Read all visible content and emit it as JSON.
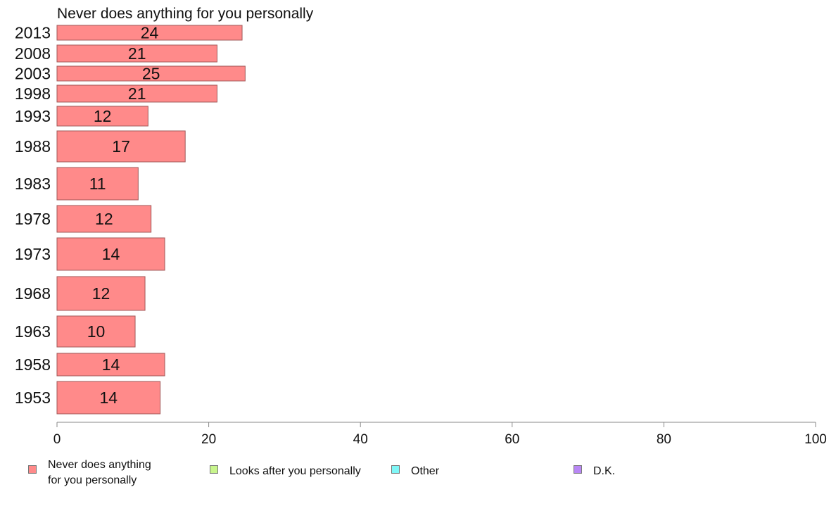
{
  "chart_data": {
    "type": "bar",
    "orientation": "horizontal",
    "title": "Never does anything for you personally",
    "categories": [
      "2013",
      "2008",
      "2003",
      "1998",
      "1993",
      "1988",
      "1983",
      "1978",
      "1973",
      "1968",
      "1963",
      "1958",
      "1953"
    ],
    "series": [
      {
        "name": "Never does anything\nfor you personally",
        "color": "#ff8a8a",
        "values": [
          24.4,
          21.1,
          24.8,
          21.1,
          12.0,
          16.9,
          10.7,
          12.4,
          14.2,
          11.6,
          10.3,
          14.2,
          13.6
        ],
        "labels": [
          "24",
          "21",
          "25",
          "21",
          "12",
          "17",
          "11",
          "12",
          "14",
          "12",
          "10",
          "14",
          "14"
        ]
      }
    ],
    "xlim": [
      0,
      100
    ],
    "xticks": [
      "0",
      "20",
      "40",
      "60",
      "80",
      "100"
    ],
    "grid": false,
    "legend_position": "bottom",
    "legend": [
      {
        "label": "Never does anything\nfor you personally",
        "color": "#ff8a8a"
      },
      {
        "label": "Looks after you personally",
        "color": "#c8f58c"
      },
      {
        "label": "Other",
        "color": "#7ff7f7"
      },
      {
        "label": "D.K.",
        "color": "#b987f5"
      }
    ]
  }
}
